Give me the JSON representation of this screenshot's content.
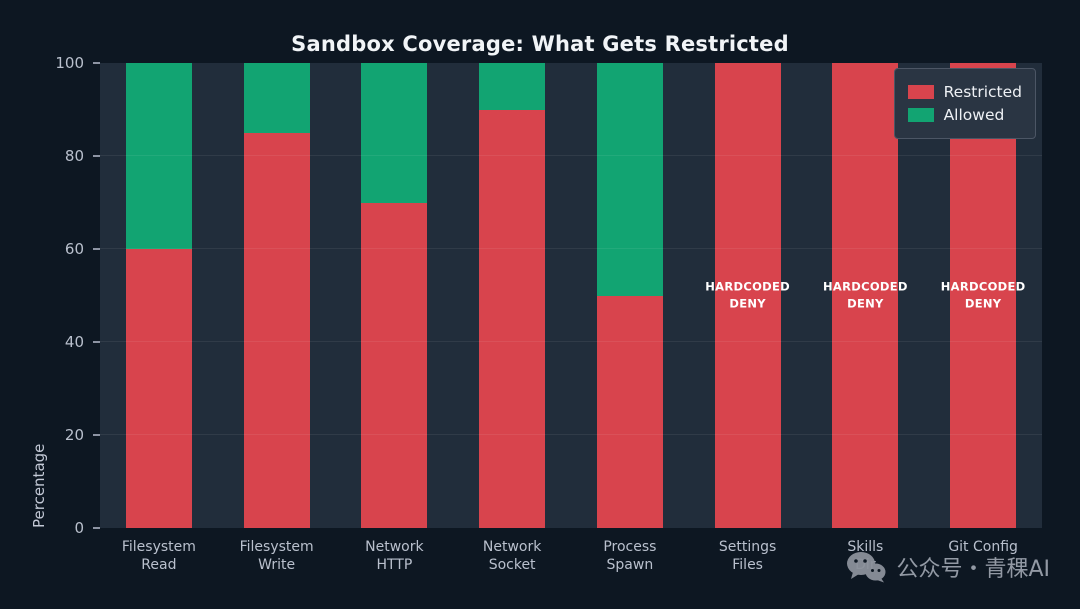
{
  "title": "Sandbox Coverage: What Gets Restricted",
  "chart_data": {
    "type": "bar",
    "stacked": true,
    "title": "Sandbox Coverage: What Gets Restricted",
    "xlabel": "",
    "ylabel": "Percentage",
    "ylim": [
      0,
      100
    ],
    "yticks": [
      0,
      20,
      40,
      60,
      80,
      100
    ],
    "grid": true,
    "legend_position": "upper right",
    "categories": [
      "Filesystem\nRead",
      "Filesystem\nWrite",
      "Network\nHTTP",
      "Network\nSocket",
      "Process\nSpawn",
      "Settings\nFiles",
      "Skills\nDir",
      "Git Config"
    ],
    "series": [
      {
        "name": "Restricted",
        "color": "#d8444d",
        "values": [
          60,
          85,
          70,
          90,
          50,
          100,
          100,
          100
        ]
      },
      {
        "name": "Allowed",
        "color": "#12a472",
        "values": [
          40,
          15,
          30,
          10,
          50,
          0,
          0,
          0
        ]
      }
    ],
    "annotations": [
      {
        "bar_index": 5,
        "text": "HARDCODED\nDENY",
        "y_percent": 50
      },
      {
        "bar_index": 6,
        "text": "HARDCODED\nDENY",
        "y_percent": 50
      },
      {
        "bar_index": 7,
        "text": "HARDCODED\nDENY",
        "y_percent": 50
      }
    ]
  },
  "legend": {
    "items": [
      {
        "label": "Restricted",
        "color": "#d8444d"
      },
      {
        "label": "Allowed",
        "color": "#12a472"
      }
    ]
  },
  "watermark": {
    "icon": "wechat-icon",
    "text": "公众号・青稞AI"
  },
  "colors": {
    "figure_background": "#0d1722",
    "plot_background": "#212d3b",
    "restricted": "#d8444d",
    "allowed": "#12a472",
    "annotation_text": "#ffffff"
  }
}
